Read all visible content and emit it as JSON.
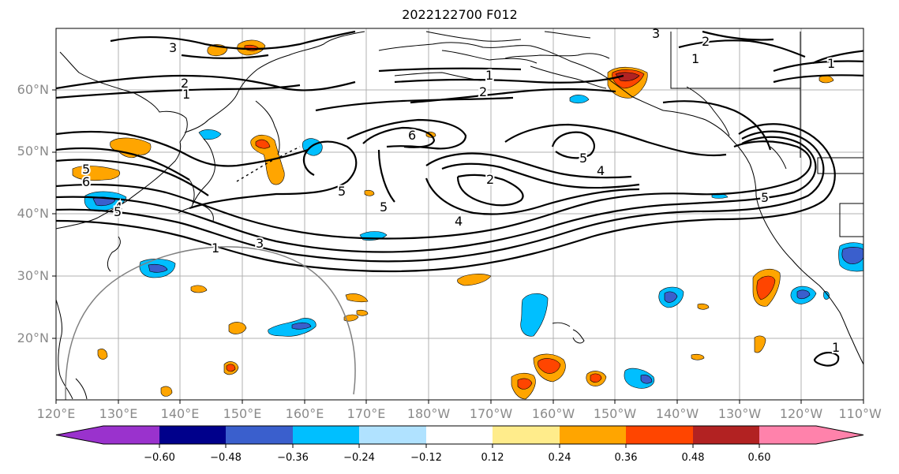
{
  "title": "2022122700 F012",
  "map": {
    "lat_labels": [
      "60°N",
      "50°N",
      "40°N",
      "30°N",
      "20°N"
    ],
    "lon_labels": [
      "120°E",
      "130°E",
      "140°E",
      "150°E",
      "160°E",
      "170°E",
      "180°W",
      "170°W",
      "160°W",
      "150°W",
      "140°W",
      "130°W",
      "120°W",
      "110°W"
    ],
    "contour_labels": [
      "3",
      "2",
      "1",
      "2",
      "1",
      "3",
      "2",
      "1",
      "1",
      "5",
      "6",
      "5",
      "4",
      "6",
      "5",
      "5",
      "2",
      "4",
      "5",
      "4",
      "1",
      "3",
      "5",
      "1"
    ],
    "colors": {
      "land_outline": "#000000",
      "gridline": "#b0b0b0",
      "contour": "#000000",
      "arc": "#808080"
    }
  },
  "colorbar": {
    "tick_labels": [
      "−0.60",
      "−0.48",
      "−0.36",
      "−0.24",
      "−0.12",
      "0.12",
      "0.24",
      "0.36",
      "0.48",
      "0.60"
    ],
    "colors": [
      "#9a32cd",
      "#00008b",
      "#3a5fcd",
      "#00bfff",
      "#b0e2ff",
      "#ffffff",
      "#ffec8b",
      "#ffa500",
      "#ff4500",
      "#b22222",
      "#ff82ab"
    ]
  }
}
